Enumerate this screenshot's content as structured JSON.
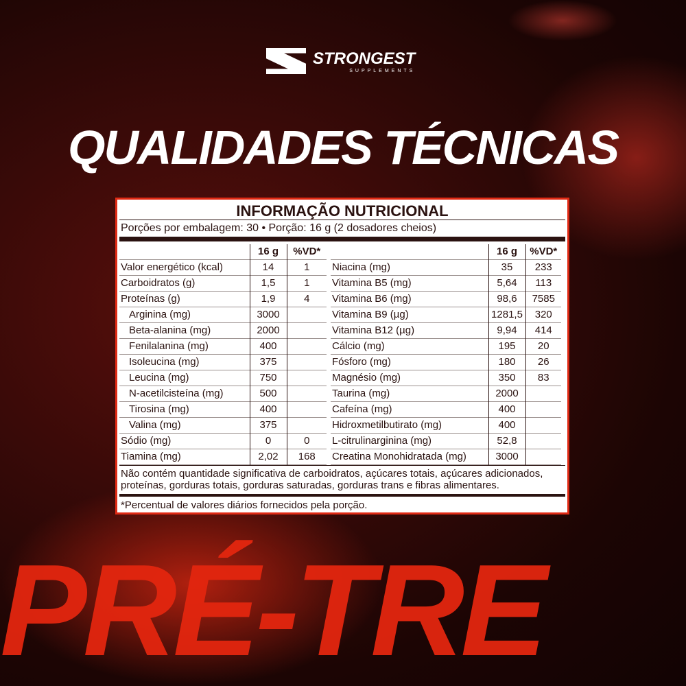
{
  "brand": {
    "name": "STRONGEST",
    "tagline": "SUPPLEMENTS"
  },
  "title": "QUALIDADES TÉCNICAS",
  "background_text": "PRÉ-TRE",
  "colors": {
    "accent": "#e02a14",
    "text": "#2a1210"
  },
  "nutrition": {
    "title": "INFORMAÇÃO NUTRICIONAL",
    "portion": "Porções por embalagem: 30 • Porção: 16 g (2 dosadores cheios)",
    "headers": [
      "",
      "16 g",
      "%VD*"
    ],
    "left": [
      [
        "Valor energético (kcal)",
        "14",
        "1"
      ],
      [
        "Carboidratos (g)",
        "1,5",
        "1"
      ],
      [
        "Proteínas (g)",
        "1,9",
        "4"
      ],
      [
        "Arginina (mg)",
        "3000",
        ""
      ],
      [
        "Beta-alanina (mg)",
        "2000",
        ""
      ],
      [
        "Fenilalanina (mg)",
        "400",
        ""
      ],
      [
        "Isoleucina (mg)",
        "375",
        ""
      ],
      [
        "Leucina (mg)",
        "750",
        ""
      ],
      [
        "N-acetilcisteína (mg)",
        "500",
        ""
      ],
      [
        "Tirosina (mg)",
        "400",
        ""
      ],
      [
        "Valina (mg)",
        "375",
        ""
      ],
      [
        "Sódio (mg)",
        "0",
        "0"
      ],
      [
        "Tiamina (mg)",
        "2,02",
        "168"
      ]
    ],
    "right": [
      [
        "Niacina (mg)",
        "35",
        "233"
      ],
      [
        "Vitamina B5 (mg)",
        "5,64",
        "113"
      ],
      [
        "Vitamina B6 (mg)",
        "98,6",
        "7585"
      ],
      [
        "Vitamina B9 (µg)",
        "1281,5",
        "320"
      ],
      [
        "Vitamina B12 (µg)",
        "9,94",
        "414"
      ],
      [
        "Cálcio (mg)",
        "195",
        "20"
      ],
      [
        "Fósforo (mg)",
        "180",
        "26"
      ],
      [
        "Magnésio (mg)",
        "350",
        "83"
      ],
      [
        "Taurina (mg)",
        "2000",
        ""
      ],
      [
        "Cafeína (mg)",
        "400",
        ""
      ],
      [
        "Hidroxmetilbutirato (mg)",
        "400",
        ""
      ],
      [
        "L-citrulinarginina (mg)",
        "52,8",
        ""
      ],
      [
        "Creatina Monohidratada (mg)",
        "3000",
        ""
      ]
    ],
    "note": "Não contém quantidade significativa de carboidratos, açúcares totais, açúcares adicionados, proteínas, gorduras totais, gorduras saturadas, gorduras trans e fibras alimentares.",
    "footnote": "*Percentual de valores diários fornecidos pela porção."
  }
}
